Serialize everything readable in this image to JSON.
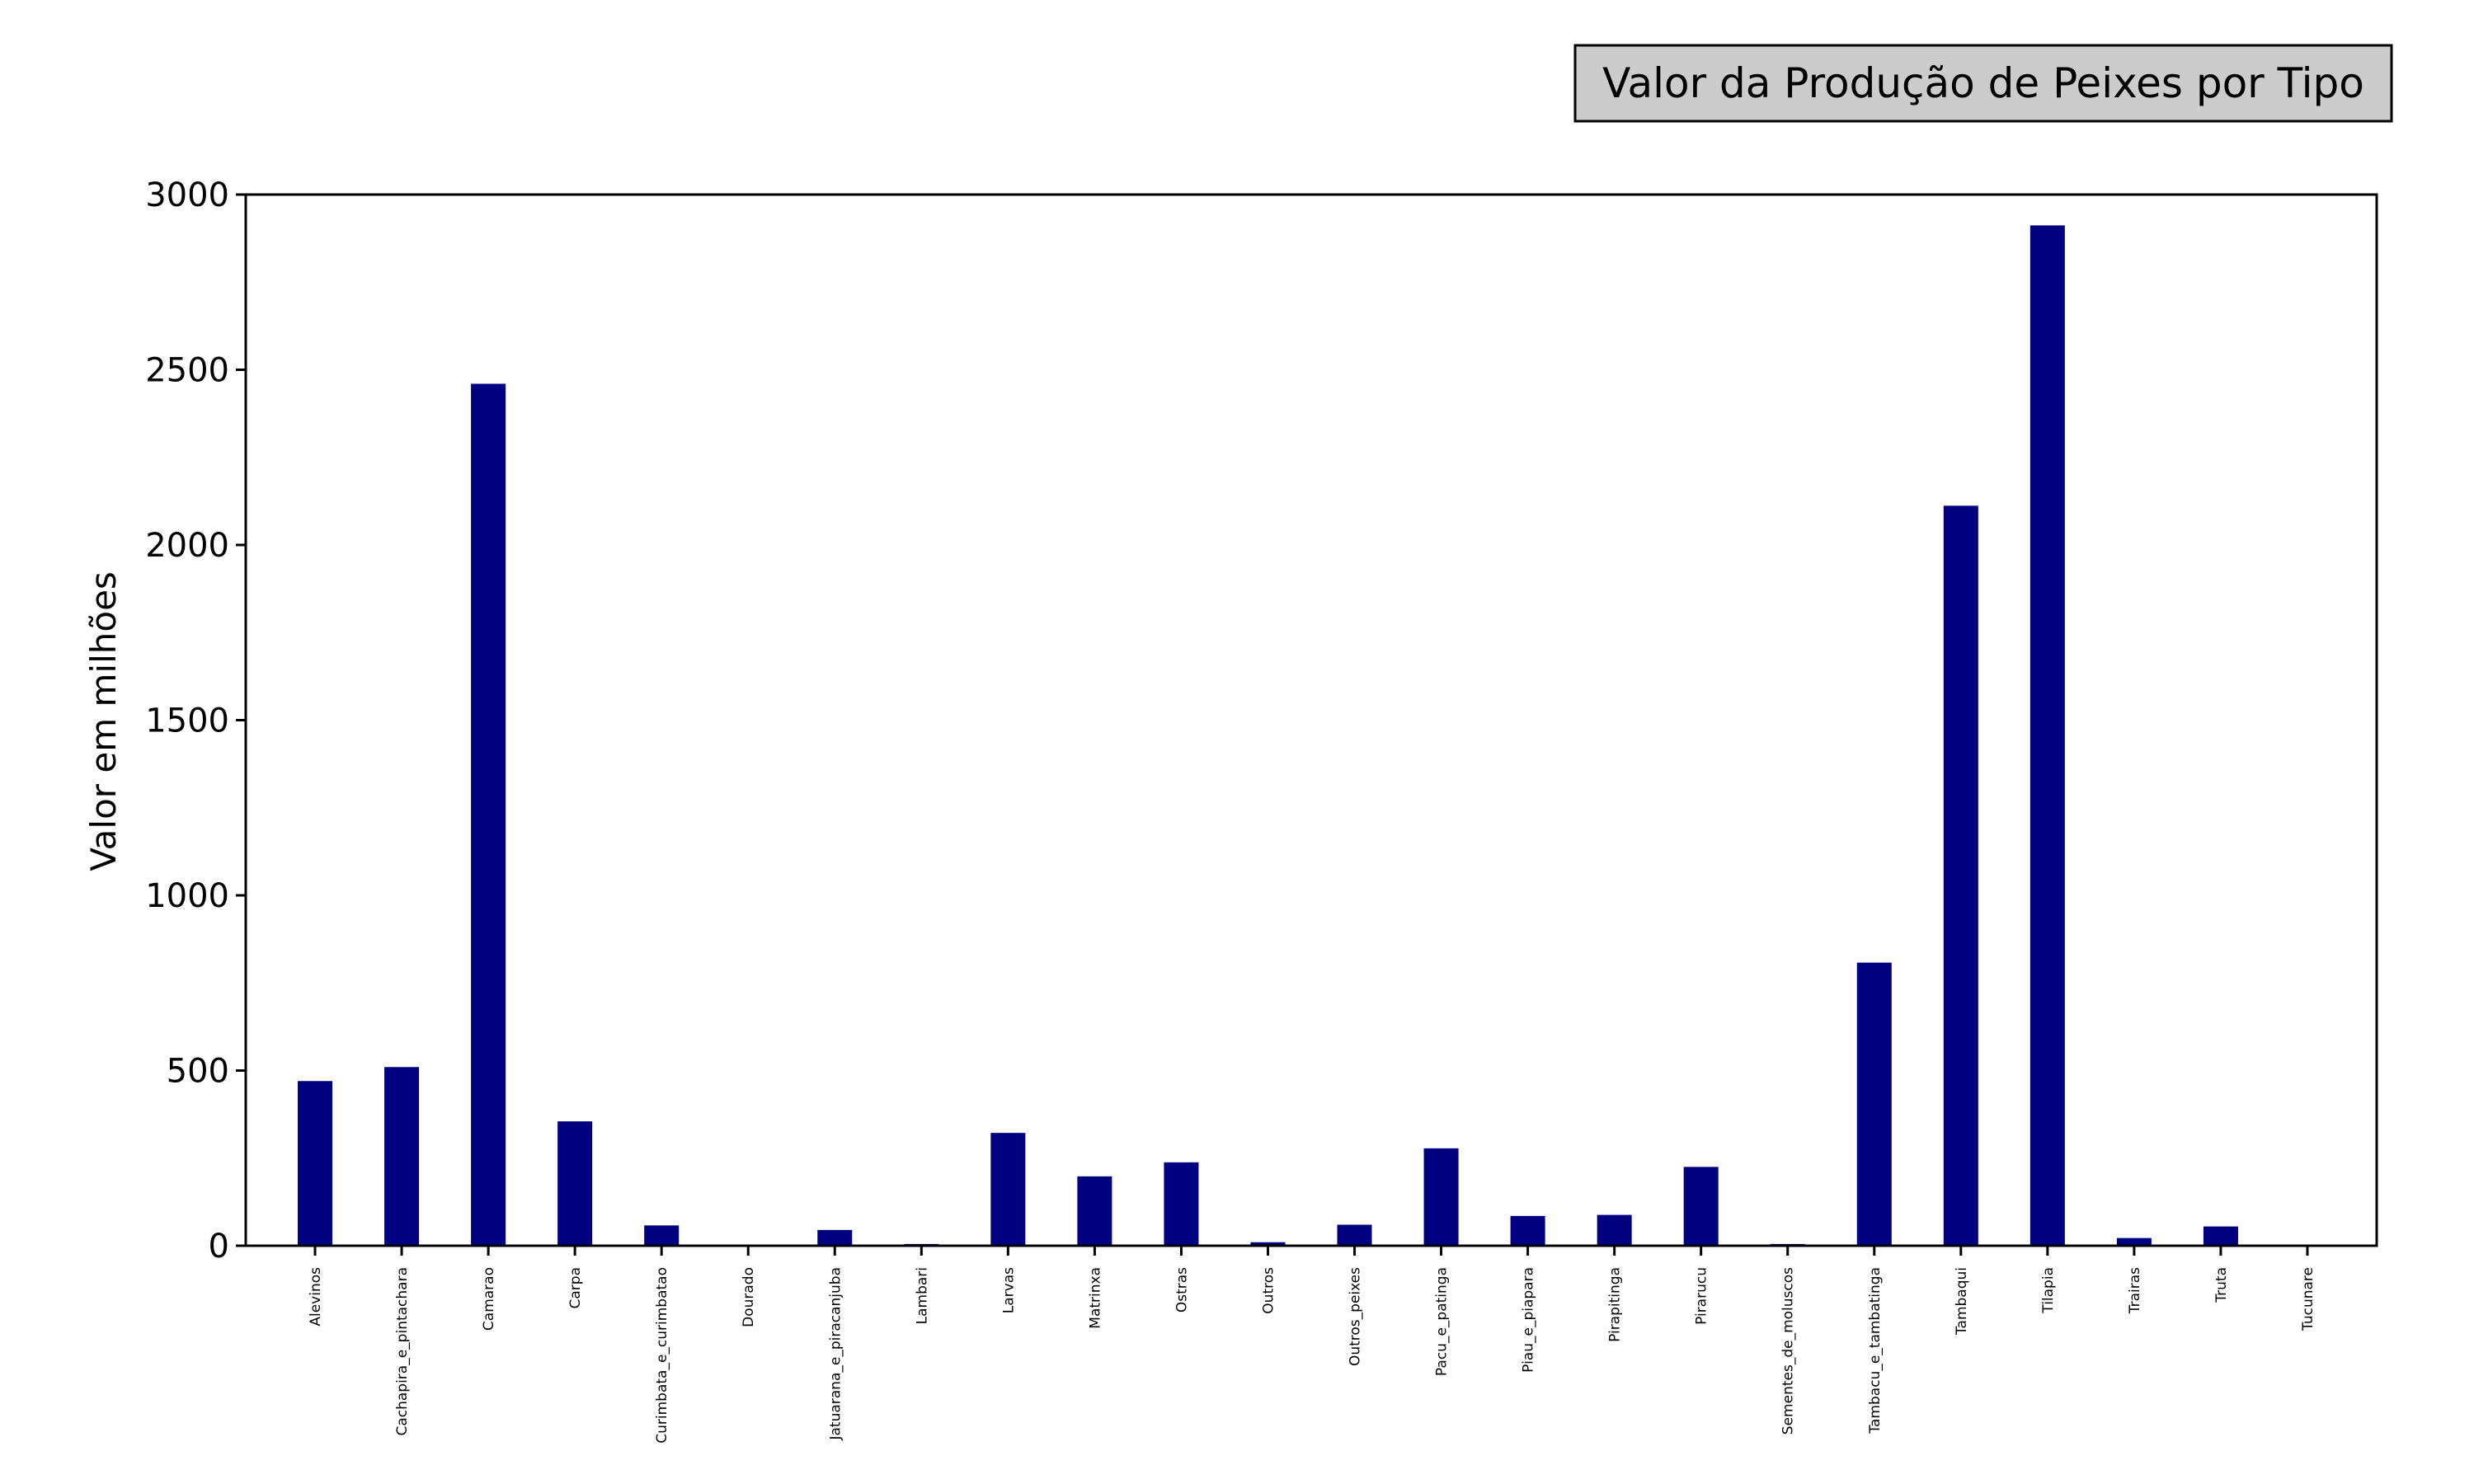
{
  "chart_data": {
    "type": "bar",
    "title": "Valor da Produção de Peixes por Tipo",
    "xlabel": "",
    "ylabel": "Valor em milhões",
    "ylim": [
      0,
      3000
    ],
    "yticks": [
      0,
      500,
      1000,
      1500,
      2000,
      2500,
      3000
    ],
    "grid": false,
    "bar_color": "#000080",
    "title_box_color": "#cccccc",
    "categories": [
      "Alevinos",
      "Cachapira_e_pintachara",
      "Camarao",
      "Carpa",
      "Curimbata_e_curimbatao",
      "Dourado",
      "Jatuarana_e_piracanjuba",
      "Lambari",
      "Larvas",
      "Matrinxa",
      "Ostras",
      "Outros",
      "Outros_peixes",
      "Pacu_e_patinga",
      "Piau_e_piapara",
      "Pirapitinga",
      "Pirarucu",
      "Sementes_de_moluscos",
      "Tambacu_e_tambatinga",
      "Tambaqui",
      "Tilapia",
      "Trairas",
      "Truta",
      "Tucunare"
    ],
    "values": [
      470,
      510,
      2460,
      355,
      58,
      1,
      45,
      5,
      322,
      198,
      238,
      10,
      60,
      278,
      85,
      88,
      225,
      5,
      808,
      2112,
      2912,
      22,
      55,
      1
    ]
  }
}
